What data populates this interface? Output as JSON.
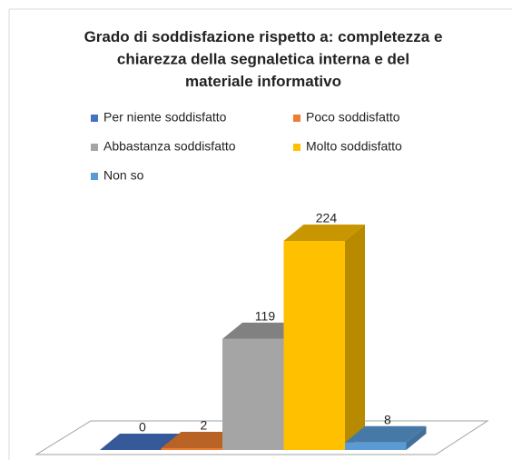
{
  "chart_data": {
    "type": "bar3d",
    "title": "Grado di soddisfazione rispetto a: completezza e chiarezza della segnaletica interna e del materiale informativo",
    "series": [
      {
        "name": "Per niente soddisfatto",
        "color": "#4472C4",
        "values": [
          0
        ]
      },
      {
        "name": "Poco soddisfatto",
        "color": "#ED7D31",
        "values": [
          2
        ]
      },
      {
        "name": "Abbastanza soddisfatto",
        "color": "#A5A5A5",
        "values": [
          119
        ]
      },
      {
        "name": "Molto soddisfatto",
        "color": "#FFC000",
        "values": [
          224
        ]
      },
      {
        "name": "Non so",
        "color": "#5B9BD5",
        "values": [
          8
        ]
      }
    ],
    "legend": "top"
  }
}
